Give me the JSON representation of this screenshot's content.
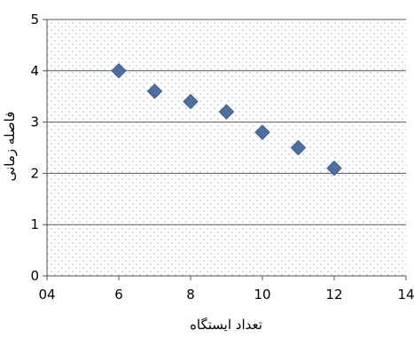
{
  "chart_data": {
    "type": "scatter",
    "xlabel": "تعداد ایستگاه",
    "ylabel": "فاصله زمانی",
    "xlim": [
      4,
      14
    ],
    "ylim": [
      0,
      5
    ],
    "x_ticks": [
      4,
      6,
      8,
      10,
      12,
      14
    ],
    "x_tick_labels": [
      "04",
      "6",
      "8",
      "10",
      "12",
      "14"
    ],
    "y_ticks": [
      0,
      1,
      2,
      3,
      4,
      5
    ],
    "y_tick_labels": [
      "0",
      "1",
      "2",
      "3",
      "4",
      "5"
    ],
    "grid": "horizontal",
    "marker": "diamond",
    "colors": {
      "marker": "#4f6fa3",
      "plot_background": "#eef1f6",
      "gridline": "#5a5a5a"
    },
    "series": [
      {
        "x": [
          6,
          7,
          8,
          9,
          10,
          11,
          12
        ],
        "y": [
          4.0,
          3.6,
          3.4,
          3.2,
          2.8,
          2.5,
          2.1
        ]
      }
    ]
  }
}
